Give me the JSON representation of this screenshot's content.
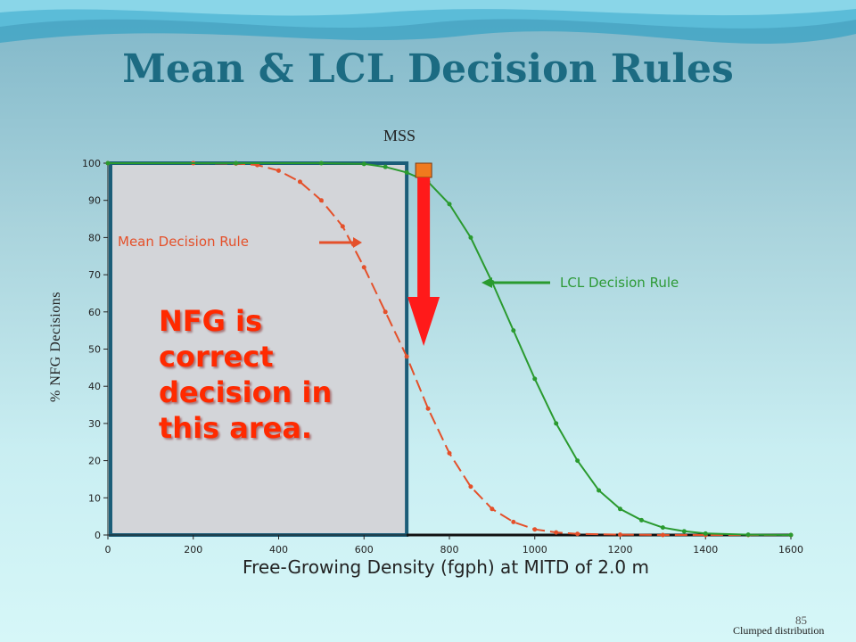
{
  "slide": {
    "title": "Mean & LCL Decision Rules",
    "mss_label": "MSS",
    "callout": "NFG is correct decision in this area.",
    "page_number": "85",
    "footer_note": "Clumped distribution"
  },
  "colors": {
    "mean": "#e4502a",
    "lcl": "#2a9a2f",
    "arrow": "#ff1a1a",
    "box": "#1b5d78",
    "title": "#1c6b82"
  },
  "chart_data": {
    "type": "line",
    "xlabel": "Free-Growing Density (fgph) at MITD of 2.0 m",
    "ylabel": "% NFG Decisions",
    "xlim": [
      0,
      1600
    ],
    "ylim": [
      0,
      100
    ],
    "x_ticks": [
      0,
      200,
      400,
      600,
      800,
      1000,
      1200,
      1400,
      1600
    ],
    "y_ticks": [
      0,
      10,
      20,
      30,
      40,
      50,
      60,
      70,
      80,
      90,
      100
    ],
    "mss_x": 700,
    "series": [
      {
        "name": "Mean Decision Rule",
        "points": [
          [
            0,
            100
          ],
          [
            200,
            100
          ],
          [
            300,
            99.9
          ],
          [
            350,
            99.5
          ],
          [
            400,
            98
          ],
          [
            450,
            95
          ],
          [
            500,
            90
          ],
          [
            550,
            83
          ],
          [
            600,
            72
          ],
          [
            650,
            60
          ],
          [
            700,
            48
          ],
          [
            750,
            34
          ],
          [
            800,
            22
          ],
          [
            850,
            13
          ],
          [
            900,
            7
          ],
          [
            950,
            3.5
          ],
          [
            1000,
            1.5
          ],
          [
            1050,
            0.7
          ],
          [
            1100,
            0.3
          ],
          [
            1200,
            0.1
          ],
          [
            1300,
            0
          ],
          [
            1400,
            0
          ],
          [
            1500,
            0
          ],
          [
            1600,
            0
          ]
        ]
      },
      {
        "name": "LCL Decision Rule",
        "points": [
          [
            0,
            100
          ],
          [
            300,
            100
          ],
          [
            500,
            100
          ],
          [
            600,
            99.8
          ],
          [
            650,
            99
          ],
          [
            700,
            97.5
          ],
          [
            750,
            95
          ],
          [
            800,
            89
          ],
          [
            850,
            80
          ],
          [
            900,
            68
          ],
          [
            950,
            55
          ],
          [
            1000,
            42
          ],
          [
            1050,
            30
          ],
          [
            1100,
            20
          ],
          [
            1150,
            12
          ],
          [
            1200,
            7
          ],
          [
            1250,
            4
          ],
          [
            1300,
            2
          ],
          [
            1350,
            1
          ],
          [
            1400,
            0.4
          ],
          [
            1500,
            0.1
          ],
          [
            1600,
            0
          ]
        ]
      }
    ]
  }
}
